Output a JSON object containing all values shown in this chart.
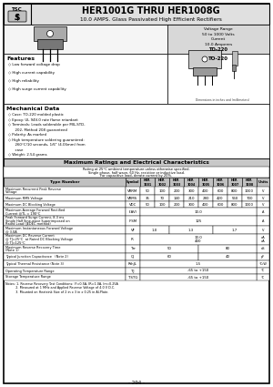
{
  "title1_normal": "HER1001G ",
  "title1_thru": "THRU ",
  "title1_bold": "HER1008G",
  "title2": "10.0 AMPS. Glass Passivated High Efficient Rectifiers",
  "voltage_range": "Voltage Range",
  "voltage_val": "50 to 1000 Volts",
  "current_label": "Current",
  "current_val": "10.0 Amperes",
  "package": "TO-220",
  "features_title": "Features",
  "features": [
    "Low forward voltage drop",
    "High current capability",
    "High reliability",
    "High surge current capability"
  ],
  "mech_title": "Mechanical Data",
  "mech_items": [
    "Case: TO-220 molded plastic",
    "Epoxy: UL 94V-0 rate flame retardant",
    "Terminals: Leads solderable per MIL-STD-",
    "   202, Method 208 guaranteed",
    "Polarity: As marked",
    "High temperature soldering guaranteed:",
    "   260°C/10 seconds, 1/6\" (4.06mm) from",
    "   case",
    "Weight: 2.54 grams"
  ],
  "mech_bullets": [
    true,
    true,
    true,
    false,
    true,
    true,
    false,
    false,
    true
  ],
  "ratings_title": "Maximum Ratings and Electrical Characteristics",
  "ratings_sub1": "Rating at 25°C ambient temperature unless otherwise specified.",
  "ratings_sub2": "Single phase, half wave, 60 Hz, resistive or inductive load.",
  "ratings_sub3": "For capacitive load, derate current by 20%.",
  "col_headers_line1": [
    "HER",
    "HER",
    "HER",
    "HER",
    "HER",
    "HER",
    "HER",
    "HER"
  ],
  "col_headers_line2": [
    "1001",
    "1002",
    "1003",
    "1004",
    "1005",
    "1006",
    "1007",
    "1008"
  ],
  "rows": [
    {
      "name": "Maximum Recurrent Peak Reverse\nVoltage",
      "symbol": "VRRM",
      "values": [
        "50",
        "100",
        "200",
        "300",
        "400",
        "600",
        "800",
        "1000"
      ],
      "unit": "V",
      "type": "individual"
    },
    {
      "name": "Maximum RMS Voltage",
      "symbol": "VRMS",
      "values": [
        "35",
        "70",
        "140",
        "210",
        "280",
        "420",
        "560",
        "700"
      ],
      "unit": "V",
      "type": "individual"
    },
    {
      "name": "Maximum DC Blocking Voltage",
      "symbol": "VDC",
      "values": [
        "50",
        "100",
        "200",
        "300",
        "400",
        "600",
        "800",
        "1000"
      ],
      "unit": "V",
      "type": "individual"
    },
    {
      "name": "Maximum Average Forward Rectified\nCurrent @TL = 190°C",
      "symbol": "I(AV)",
      "center_val": "10.0",
      "unit": "A",
      "type": "span"
    },
    {
      "name": "Peak Forward Surge Current, 8.3 ms\nSingle Half Sine-wave Superimposed on\nRated Load (JEDEC method)",
      "symbol": "IFSM",
      "center_val": "125",
      "unit": "A",
      "type": "span"
    },
    {
      "name": "Maximum Instantaneous Forward Voltage\n@ 3.0A",
      "symbol": "VF",
      "groups": [
        {
          "val": "1.0",
          "span": 2
        },
        {
          "val": "1.3",
          "span": 3
        },
        {
          "val": "1.7",
          "span": 3
        }
      ],
      "unit": "V",
      "type": "groups"
    },
    {
      "name": "Maximum DC Reverse Current\n@ TJ=25°C  at Rated DC Blocking Voltage\n@ TJ=125°C",
      "symbol": "IR",
      "center_val": "10.0\n400",
      "unit": "uA\nuA",
      "type": "span"
    },
    {
      "name": "Maximum Reverse Recovery Time\n(Note 1)",
      "symbol": "Trr",
      "groups": [
        {
          "val": "50",
          "span": 4
        },
        {
          "val": "80",
          "span": 4
        }
      ],
      "unit": "nS",
      "type": "groups"
    },
    {
      "name": "Typical Junction Capacitance   (Note 2)",
      "symbol": "CJ",
      "groups": [
        {
          "val": "60",
          "span": 4
        },
        {
          "val": "40",
          "span": 4
        }
      ],
      "unit": "pF",
      "type": "groups"
    },
    {
      "name": "Typical Thermal Resistance (Note 3)",
      "symbol": "RthJL",
      "center_val": "1.5",
      "unit": "°C/W",
      "type": "span"
    },
    {
      "name": "Operating Temperature Range",
      "symbol": "TJ",
      "center_val": "-65 to +150",
      "unit": "°C",
      "type": "span"
    },
    {
      "name": "Storage Temperature Range",
      "symbol": "TSTG",
      "center_val": "-65 to +150",
      "unit": "°C",
      "type": "span"
    }
  ],
  "notes": [
    "Notes: 1. Reverse Recovery Test Conditions: IF=0.5A, IR=1.0A, Irr=0.25A",
    "          2. Measured at 1 MHz and Applied Reverse Voltage of 4.0 V D.C.",
    "          3. Mounted on Heatsink Size of 2 in x 3 in x 0.25 in Al-Plate."
  ],
  "page_num": "- 294 -",
  "bg_color": "#ffffff"
}
